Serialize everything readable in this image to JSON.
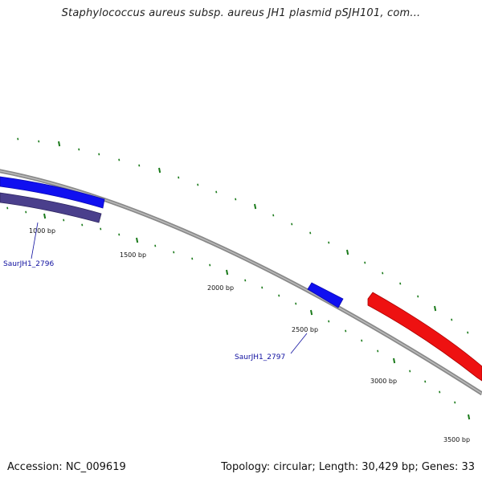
{
  "title": "Staphylococcus aureus subsp. aureus JH1 plasmid pSJH101, com...",
  "footer": {
    "accession": "Accession: NC_009619",
    "summary": "Topology: circular; Length: 30,429 bp; Genes: 33"
  },
  "ticks": [
    {
      "label": "1000 bp"
    },
    {
      "label": "1500 bp"
    },
    {
      "label": "2000 bp"
    },
    {
      "label": "2500 bp"
    },
    {
      "label": "3000 bp"
    },
    {
      "label": "3500 bp"
    }
  ],
  "genes": [
    {
      "id": "SaurJH1_2796",
      "label": "SaurJH1_2796"
    },
    {
      "id": "SaurJH1_2797",
      "label": "SaurJH1_2797"
    }
  ],
  "colors": {
    "backbone": "#8a8a8a",
    "forward_gene": "#1010f0",
    "reverse_gene_purple": "#4a3f8c",
    "red_gene": "#ee1111",
    "tick": "#1a7a1a",
    "label_line": "#1010a0"
  }
}
